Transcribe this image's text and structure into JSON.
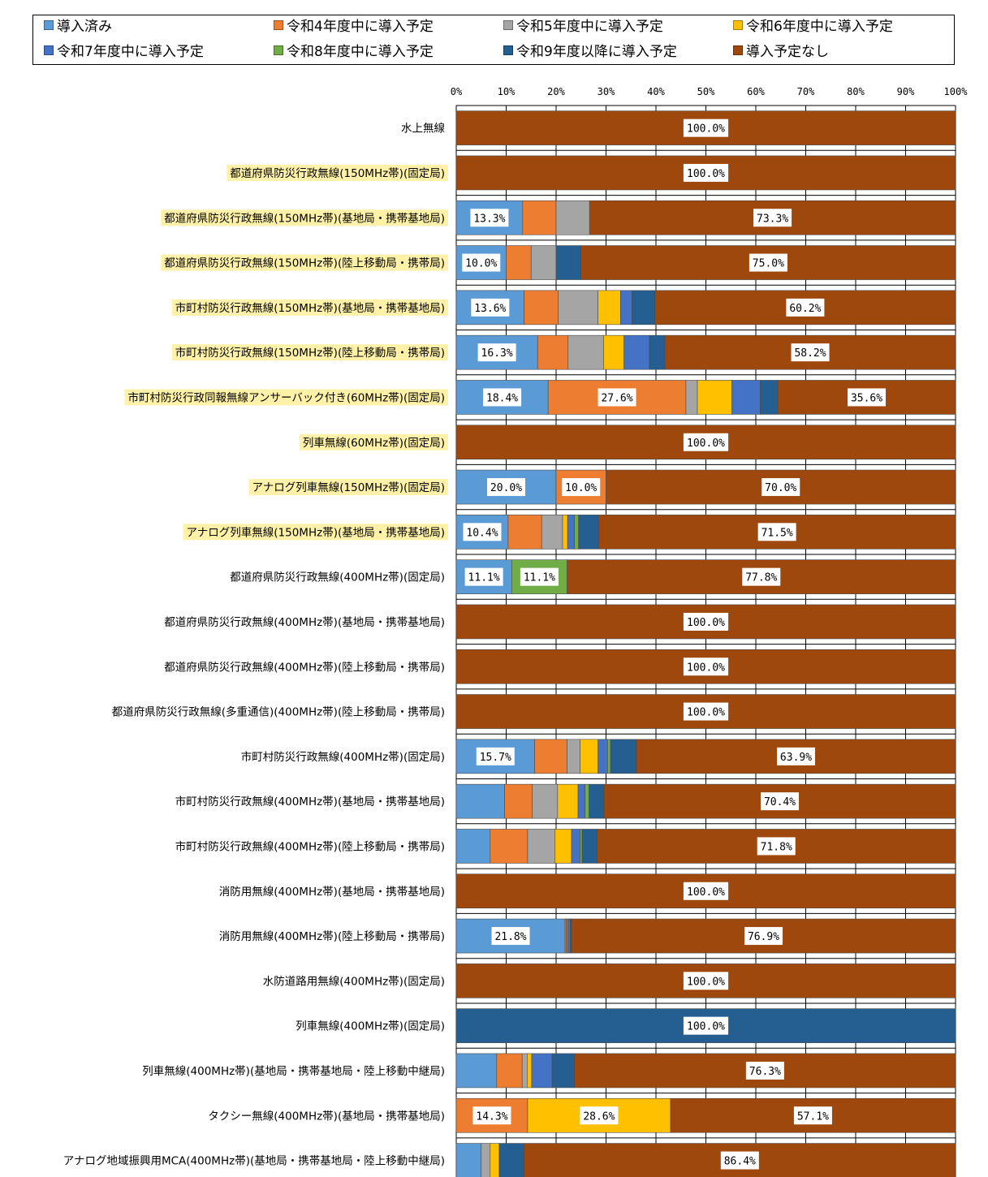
{
  "chart_data": {
    "type": "bar",
    "orientation": "horizontal",
    "stacked": true,
    "xlim": [
      0,
      100
    ],
    "x_ticks": [
      "0%",
      "10%",
      "20%",
      "30%",
      "40%",
      "50%",
      "60%",
      "70%",
      "80%",
      "90%",
      "100%"
    ],
    "grid": true,
    "legend_position": "top",
    "series": [
      {
        "name": "導入済み",
        "color": "#5b9bd5"
      },
      {
        "name": "令和4年度中に導入予定",
        "color": "#ed7d31"
      },
      {
        "name": "令和5年度中に導入予定",
        "color": "#a5a5a5"
      },
      {
        "name": "令和6年度中に導入予定",
        "color": "#ffc000"
      },
      {
        "name": "令和7年度中に導入予定",
        "color": "#4472c4"
      },
      {
        "name": "令和8年度中に導入予定",
        "color": "#70ad47"
      },
      {
        "name": "令和9年度以降に導入予定",
        "color": "#255e91"
      },
      {
        "name": "導入予定なし",
        "color": "#9e480e"
      }
    ],
    "rows": [
      {
        "label": "水上無線",
        "highlight": false,
        "values": [
          0,
          0,
          0,
          0,
          0,
          0,
          0,
          100
        ],
        "labels": [
          "",
          "",
          "",
          "",
          "",
          "",
          "",
          "100.0%"
        ]
      },
      {
        "label": "都道府県防災行政無線(150MHz帯)(固定局)",
        "highlight": true,
        "values": [
          0,
          0,
          0,
          0,
          0,
          0,
          0,
          100
        ],
        "labels": [
          "",
          "",
          "",
          "",
          "",
          "",
          "",
          "100.0%"
        ]
      },
      {
        "label": "都道府県防災行政無線(150MHz帯)(基地局・携帯基地局)",
        "highlight": true,
        "values": [
          13.3,
          6.7,
          6.7,
          0,
          0,
          0,
          0,
          73.3
        ],
        "labels": [
          "13.3%",
          "",
          "",
          "",
          "",
          "",
          "",
          "73.3%"
        ]
      },
      {
        "label": "都道府県防災行政無線(150MHz帯)(陸上移動局・携帯局)",
        "highlight": true,
        "values": [
          10.0,
          5.0,
          5.0,
          0,
          0,
          0,
          5.0,
          75.0
        ],
        "labels": [
          "10.0%",
          "",
          "",
          "",
          "",
          "",
          "",
          "75.0%"
        ]
      },
      {
        "label": "市町村防災行政無線(150MHz帯)(基地局・携帯基地局)",
        "highlight": true,
        "values": [
          13.6,
          6.8,
          8.0,
          4.5,
          2.3,
          0,
          4.6,
          60.2
        ],
        "labels": [
          "13.6%",
          "",
          "",
          "",
          "",
          "",
          "",
          "60.2%"
        ]
      },
      {
        "label": "市町村防災行政無線(150MHz帯)(陸上移動局・携帯局)",
        "highlight": true,
        "values": [
          16.3,
          6.1,
          7.1,
          4.1,
          5.1,
          0,
          3.1,
          58.2
        ],
        "labels": [
          "16.3%",
          "",
          "",
          "",
          "",
          "",
          "",
          "58.2%"
        ]
      },
      {
        "label": "市町村防災行政同報無線アンサーバック付き(60MHz帯)(固定局)",
        "highlight": true,
        "values": [
          18.4,
          27.6,
          2.3,
          6.9,
          5.7,
          0,
          3.5,
          35.6
        ],
        "labels": [
          "18.4%",
          "27.6%",
          "",
          "",
          "",
          "",
          "",
          "35.6%"
        ]
      },
      {
        "label": "列車無線(60MHz帯)(固定局)",
        "highlight": true,
        "values": [
          0,
          0,
          0,
          0,
          0,
          0,
          0,
          100
        ],
        "labels": [
          "",
          "",
          "",
          "",
          "",
          "",
          "",
          "100.0%"
        ]
      },
      {
        "label": "アナログ列車無線(150MHz帯)(固定局)",
        "highlight": true,
        "values": [
          20.0,
          10.0,
          0,
          0,
          0,
          0,
          0,
          70.0
        ],
        "labels": [
          "20.0%",
          "10.0%",
          "",
          "",
          "",
          "",
          "",
          "70.0%"
        ]
      },
      {
        "label": "アナログ列車無線(150MHz帯)(基地局・携帯基地局)",
        "highlight": true,
        "values": [
          10.4,
          6.7,
          4.2,
          1.0,
          1.4,
          0.8,
          4.0,
          71.5
        ],
        "labels": [
          "10.4%",
          "",
          "",
          "",
          "",
          "",
          "",
          "71.5%"
        ]
      },
      {
        "label": "都道府県防災行政無線(400MHz帯)(固定局)",
        "highlight": false,
        "values": [
          11.1,
          0,
          0,
          0,
          0,
          11.1,
          0,
          77.8
        ],
        "labels": [
          "11.1%",
          "",
          "",
          "",
          "",
          "11.1%",
          "",
          "77.8%"
        ]
      },
      {
        "label": "都道府県防災行政無線(400MHz帯)(基地局・携帯基地局)",
        "highlight": false,
        "values": [
          0,
          0,
          0,
          0,
          0,
          0,
          0,
          100
        ],
        "labels": [
          "",
          "",
          "",
          "",
          "",
          "",
          "",
          "100.0%"
        ]
      },
      {
        "label": "都道府県防災行政無線(400MHz帯)(陸上移動局・携帯局)",
        "highlight": false,
        "values": [
          0,
          0,
          0,
          0,
          0,
          0,
          0,
          100
        ],
        "labels": [
          "",
          "",
          "",
          "",
          "",
          "",
          "",
          "100.0%"
        ]
      },
      {
        "label": "都道府県防災行政無線(多重通信)(400MHz帯)(陸上移動局・携帯局)",
        "highlight": false,
        "values": [
          0,
          0,
          0,
          0,
          0,
          0,
          0,
          100
        ],
        "labels": [
          "",
          "",
          "",
          "",
          "",
          "",
          "",
          "100.0%"
        ]
      },
      {
        "label": "市町村防災行政無線(400MHz帯)(固定局)",
        "highlight": false,
        "values": [
          15.7,
          6.5,
          2.6,
          3.6,
          1.9,
          0.6,
          5.2,
          63.9
        ],
        "labels": [
          "15.7%",
          "",
          "",
          "",
          "",
          "",
          "",
          "63.9%"
        ]
      },
      {
        "label": "市町村防災行政無線(400MHz帯)(基地局・携帯基地局)",
        "highlight": false,
        "values": [
          9.7,
          5.5,
          5.1,
          4.1,
          1.4,
          0.8,
          3.0,
          70.4
        ],
        "labels": [
          "",
          "",
          "",
          "",
          "",
          "",
          "",
          "70.4%"
        ]
      },
      {
        "label": "市町村防災行政無線(400MHz帯)(陸上移動局・携帯局)",
        "highlight": false,
        "values": [
          6.8,
          7.5,
          5.5,
          3.3,
          1.7,
          0.4,
          3.0,
          71.8
        ],
        "labels": [
          "",
          "",
          "",
          "",
          "",
          "",
          "",
          "71.8%"
        ]
      },
      {
        "label": "消防用無線(400MHz帯)(基地局・携帯基地局)",
        "highlight": false,
        "values": [
          0,
          0,
          0,
          0,
          0,
          0,
          0,
          100
        ],
        "labels": [
          "",
          "",
          "",
          "",
          "",
          "",
          "",
          "100.0%"
        ]
      },
      {
        "label": "消防用無線(400MHz帯)(陸上移動局・携帯局)",
        "highlight": false,
        "values": [
          21.8,
          0.2,
          0.2,
          0.2,
          0.2,
          0.2,
          0.3,
          76.9
        ],
        "labels": [
          "21.8%",
          "",
          "",
          "",
          "",
          "",
          "",
          "76.9%"
        ]
      },
      {
        "label": "水防道路用無線(400MHz帯)(固定局)",
        "highlight": false,
        "values": [
          0,
          0,
          0,
          0,
          0,
          0,
          0,
          100
        ],
        "labels": [
          "",
          "",
          "",
          "",
          "",
          "",
          "",
          "100.0%"
        ]
      },
      {
        "label": "列車無線(400MHz帯)(固定局)",
        "highlight": false,
        "values": [
          0,
          0,
          0,
          0,
          0,
          0,
          100,
          0
        ],
        "labels": [
          "",
          "",
          "",
          "",
          "",
          "",
          "100.0%",
          ""
        ]
      },
      {
        "label": "列車無線(400MHz帯)(基地局・携帯基地局・陸上移動中継局)",
        "highlight": false,
        "values": [
          8.1,
          5.1,
          1.0,
          0.9,
          4.1,
          0,
          4.5,
          76.3
        ],
        "labels": [
          "",
          "",
          "",
          "",
          "",
          "",
          "",
          "76.3%"
        ]
      },
      {
        "label": "タクシー無線(400MHz帯)(基地局・携帯基地局)",
        "highlight": false,
        "values": [
          0,
          14.3,
          0,
          28.6,
          0,
          0,
          0,
          57.1
        ],
        "labels": [
          "",
          "14.3%",
          "",
          "28.6%",
          "",
          "",
          "",
          "57.1%"
        ]
      },
      {
        "label": "アナログ地域振興用MCA(400MHz帯)(基地局・携帯基地局・陸上移動中継局)",
        "highlight": false,
        "values": [
          5.0,
          0,
          1.8,
          1.8,
          0,
          0,
          5.0,
          86.4
        ],
        "labels": [
          "",
          "",
          "",
          "",
          "",
          "",
          "",
          "86.4%"
        ]
      }
    ]
  }
}
